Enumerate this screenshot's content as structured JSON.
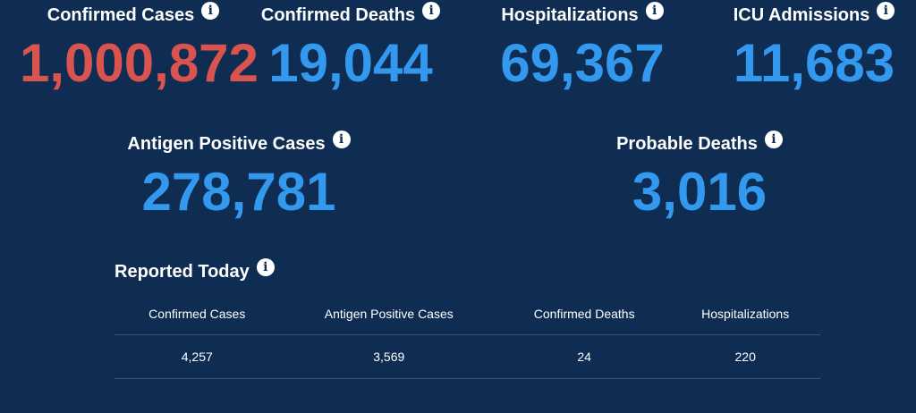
{
  "colors": {
    "background": "#0f2d52",
    "cases_red": "#d9534f",
    "stat_blue": "#3399ee",
    "text_white": "#ffffff",
    "divider": "#3b5373"
  },
  "stats": {
    "confirmed_cases": {
      "label": "Confirmed Cases",
      "value": "1,000,872"
    },
    "confirmed_deaths": {
      "label": "Confirmed Deaths",
      "value": "19,044"
    },
    "hospitalizations": {
      "label": "Hospitalizations",
      "value": "69,367"
    },
    "icu_admissions": {
      "label": "ICU Admissions",
      "value": "11,683"
    },
    "antigen_positive": {
      "label": "Antigen Positive Cases",
      "value": "278,781"
    },
    "probable_deaths": {
      "label": "Probable Deaths",
      "value": "3,016"
    }
  },
  "info_icon_glyph": "i",
  "reported_today": {
    "title": "Reported Today",
    "columns": [
      "Confirmed Cases",
      "Antigen Positive Cases",
      "Confirmed Deaths",
      "Hospitalizations"
    ],
    "values": [
      "4,257",
      "3,569",
      "24",
      "220"
    ]
  }
}
